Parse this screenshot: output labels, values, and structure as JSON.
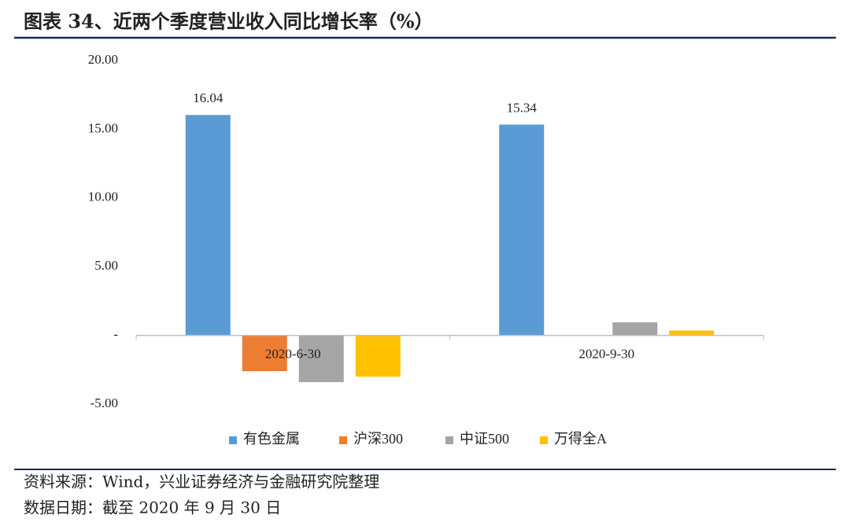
{
  "chart_data": {
    "type": "bar",
    "title": "图表 34、近两个季度营业收入同比增长率（%）",
    "categories": [
      "2020-6-30",
      "2020-9-30"
    ],
    "series": [
      {
        "name": "有色金属",
        "color": "#5b9bd5",
        "values": [
          16.04,
          15.34
        ]
      },
      {
        "name": "沪深300",
        "color": "#ed7d31",
        "values": [
          -2.6,
          0
        ]
      },
      {
        "name": "中证500",
        "color": "#a5a5a5",
        "values": [
          -3.4,
          0.95
        ]
      },
      {
        "name": "万得全A",
        "color": "#ffc000",
        "values": [
          -3.0,
          0.35
        ]
      }
    ],
    "data_labels_series": 0,
    "ylim": [
      -5,
      20
    ],
    "yticks": [
      {
        "value": -5,
        "label": "-5.00"
      },
      {
        "value": 0,
        "label": "-"
      },
      {
        "value": 5,
        "label": "5.00"
      },
      {
        "value": 10,
        "label": "10.00"
      },
      {
        "value": 15,
        "label": "15.00"
      },
      {
        "value": 20,
        "label": "20.00"
      }
    ],
    "grid": false,
    "legend": "bottom",
    "notes": [
      "资料来源：Wind，兴业证券经济与金融研究院整理",
      "数据日期：截至 2020 年 9 月 30 日"
    ]
  }
}
